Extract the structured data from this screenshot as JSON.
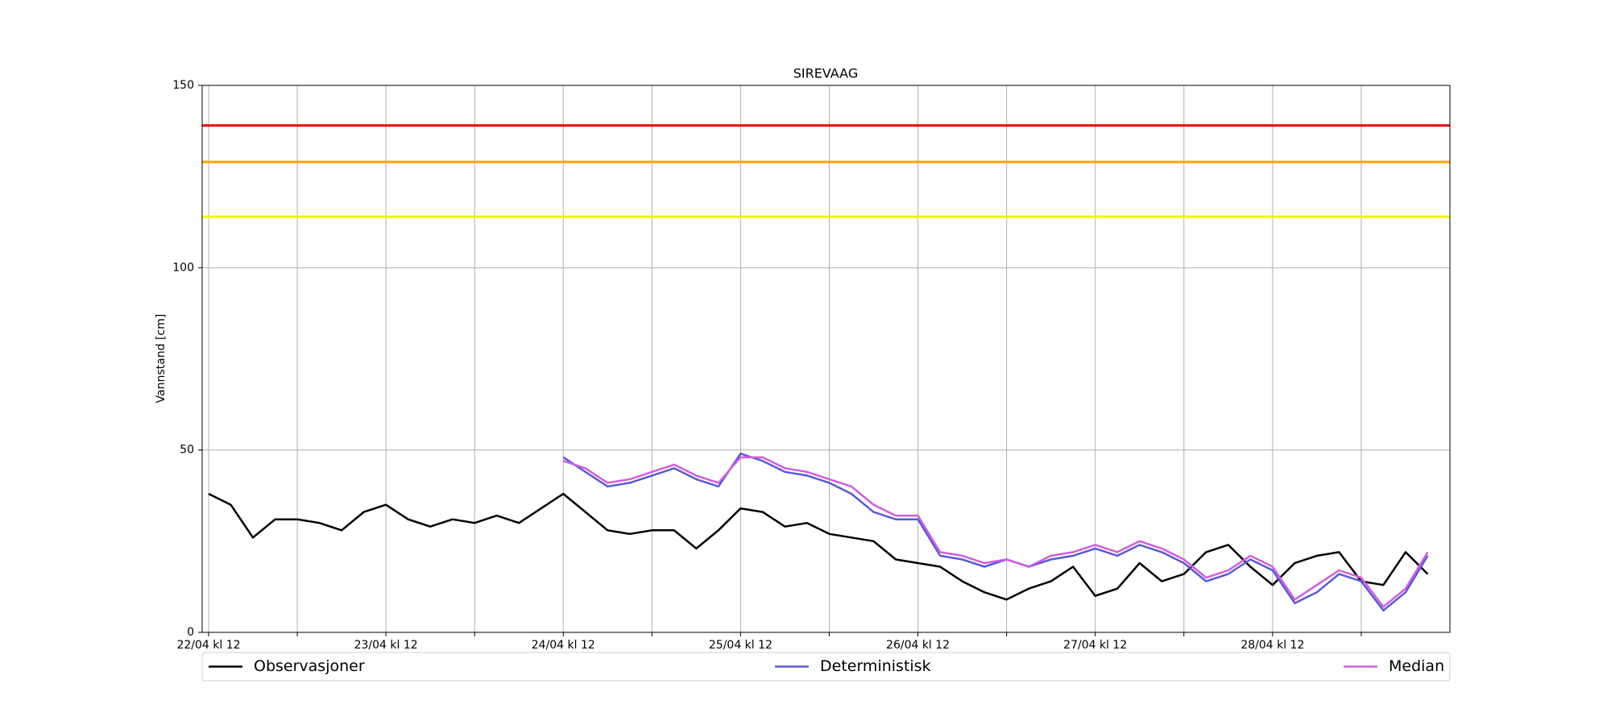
{
  "chart_data": {
    "type": "line",
    "title": "SIREVAAG",
    "y_label": "Vannstand [cm]",
    "categories": [
      "22/04 kl 12",
      null,
      null,
      null,
      null,
      null,
      null,
      null,
      "23/04 kl 12",
      null,
      null,
      null,
      null,
      null,
      null,
      null,
      "24/04 kl 12",
      null,
      null,
      null,
      null,
      null,
      null,
      null,
      "25/04 kl 12",
      null,
      null,
      null,
      null,
      null,
      null,
      null,
      "26/04 kl 12",
      null,
      null,
      null,
      null,
      null,
      null,
      null,
      "27/04 kl 12",
      null,
      null,
      null,
      null,
      null,
      null,
      null,
      "28/04 kl 12",
      null,
      null,
      null,
      null,
      null,
      null,
      null
    ],
    "series": [
      {
        "name": "Observasjoner",
        "color": "#000000",
        "values": [
          38,
          35,
          26,
          31,
          31,
          30,
          28,
          33,
          35,
          31,
          29,
          31,
          30,
          32,
          30,
          34,
          38,
          33,
          28,
          27,
          28,
          28,
          23,
          28,
          34,
          33,
          29,
          30,
          27,
          26,
          25,
          20,
          19,
          18,
          14,
          11,
          9,
          12,
          14,
          18,
          10,
          12,
          19,
          14,
          16,
          22,
          24,
          18,
          13,
          19,
          21,
          22,
          14,
          13,
          22,
          16
        ]
      },
      {
        "name": "Deterministisk",
        "color": "#5a5ad6",
        "values": [
          null,
          null,
          null,
          null,
          null,
          null,
          null,
          null,
          null,
          null,
          null,
          null,
          null,
          null,
          null,
          null,
          48,
          44,
          40,
          41,
          43,
          45,
          42,
          40,
          49,
          47,
          44,
          43,
          41,
          38,
          33,
          31,
          31,
          21,
          20,
          18,
          20,
          18,
          20,
          21,
          23,
          21,
          24,
          22,
          19,
          14,
          16,
          20,
          17,
          8,
          11,
          16,
          14,
          6,
          11,
          21
        ]
      },
      {
        "name": "Median",
        "color": "#d05ee0",
        "values": [
          null,
          null,
          null,
          null,
          null,
          null,
          null,
          null,
          null,
          null,
          null,
          null,
          null,
          null,
          null,
          null,
          47,
          45,
          41,
          42,
          44,
          46,
          43,
          41,
          48,
          48,
          45,
          44,
          42,
          40,
          35,
          32,
          32,
          22,
          21,
          19,
          20,
          18,
          21,
          22,
          24,
          22,
          25,
          23,
          20,
          15,
          17,
          21,
          18,
          9,
          13,
          17,
          15,
          7,
          12,
          22
        ]
      }
    ],
    "reference_lines": [
      {
        "value": 139,
        "color": "#e8000b"
      },
      {
        "value": 129,
        "color": "#ffa500"
      },
      {
        "value": 114,
        "color": "#f2f200"
      }
    ],
    "ylim": [
      0,
      150
    ],
    "yticks": [
      0,
      50,
      100,
      150
    ],
    "grid": true,
    "legend": "bottom"
  }
}
